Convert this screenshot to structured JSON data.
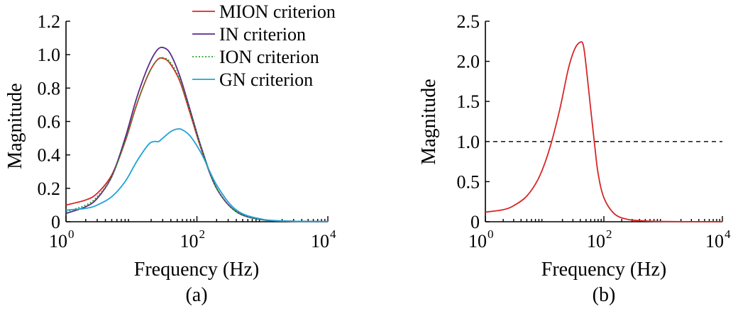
{
  "chart_data": [
    {
      "type": "line",
      "panel_label": "(a)",
      "xlabel": "Frequency (Hz)",
      "ylabel": "Magnitude",
      "x_scale": "log",
      "xlim": [
        1,
        10000
      ],
      "ylim": [
        0,
        1.2
      ],
      "x_ticks": [
        {
          "base": "10",
          "exp": "0",
          "value": 1
        },
        {
          "base": "10",
          "exp": "2",
          "value": 100
        },
        {
          "base": "10",
          "exp": "4",
          "value": 10000
        }
      ],
      "y_ticks": [
        "0",
        "0.2",
        "0.4",
        "0.6",
        "0.8",
        "1.0",
        "1.2"
      ],
      "legend_position": "top-right",
      "series": [
        {
          "name": "MION criterion",
          "color": "#d62728",
          "dash": "solid",
          "x": [
            1,
            2,
            3,
            5,
            8,
            12,
            18,
            25,
            32,
            40,
            55,
            80,
            120,
            200,
            400,
            1000,
            3000,
            10000
          ],
          "y": [
            0.1,
            0.13,
            0.17,
            0.28,
            0.48,
            0.7,
            0.88,
            0.97,
            0.975,
            0.94,
            0.84,
            0.64,
            0.42,
            0.2,
            0.06,
            0.012,
            0.003,
            0.001
          ]
        },
        {
          "name": "IN criterion",
          "color": "#5b2a86",
          "dash": "solid",
          "x": [
            1,
            2,
            3,
            5,
            8,
            12,
            18,
            25,
            32,
            40,
            55,
            80,
            120,
            200,
            400,
            1000,
            3000,
            10000
          ],
          "y": [
            0.05,
            0.09,
            0.14,
            0.27,
            0.5,
            0.74,
            0.93,
            1.03,
            1.04,
            1.0,
            0.87,
            0.66,
            0.43,
            0.2,
            0.06,
            0.012,
            0.003,
            0.001
          ]
        },
        {
          "name": "ION criterion",
          "color": "#2ca02c",
          "dash": "dotted",
          "x": [
            1,
            2,
            3,
            5,
            8,
            12,
            18,
            25,
            32,
            40,
            55,
            80,
            120,
            200,
            400,
            1000,
            3000,
            10000
          ],
          "y": [
            0.06,
            0.1,
            0.15,
            0.27,
            0.48,
            0.7,
            0.88,
            0.97,
            0.98,
            0.95,
            0.85,
            0.65,
            0.43,
            0.2,
            0.06,
            0.012,
            0.003,
            0.001
          ]
        },
        {
          "name": "GN criterion",
          "color": "#1fa3d6",
          "dash": "solid",
          "x": [
            1,
            2,
            3,
            5,
            8,
            12,
            18,
            22,
            26,
            30,
            40,
            50,
            60,
            80,
            120,
            200,
            400,
            1000,
            3000,
            10000
          ],
          "y": [
            0.07,
            0.08,
            0.1,
            0.15,
            0.24,
            0.36,
            0.46,
            0.48,
            0.48,
            0.5,
            0.54,
            0.555,
            0.55,
            0.51,
            0.4,
            0.22,
            0.07,
            0.015,
            0.003,
            0.001
          ]
        }
      ]
    },
    {
      "type": "line",
      "panel_label": "(b)",
      "xlabel": "Frequency (Hz)",
      "ylabel": "Magnitude",
      "x_scale": "log",
      "xlim": [
        1,
        10000
      ],
      "ylim": [
        0,
        2.5
      ],
      "x_ticks": [
        {
          "base": "10",
          "exp": "0",
          "value": 1
        },
        {
          "base": "10",
          "exp": "2",
          "value": 100
        },
        {
          "base": "10",
          "exp": "4",
          "value": 10000
        }
      ],
      "y_ticks": [
        "0",
        "0.5",
        "1.0",
        "1.5",
        "2.0",
        "2.5"
      ],
      "reference_line": {
        "y": 1.0,
        "color": "#000000",
        "dash": "dashed"
      },
      "series": [
        {
          "color": "#d62728",
          "dash": "solid",
          "x": [
            1,
            2,
            3,
            5,
            8,
            12,
            18,
            25,
            32,
            40,
            45,
            50,
            60,
            70,
            80,
            100,
            150,
            250,
            500,
            1000,
            3000,
            10000
          ],
          "y": [
            0.12,
            0.15,
            0.2,
            0.32,
            0.55,
            0.9,
            1.4,
            1.9,
            2.15,
            2.24,
            2.2,
            1.95,
            1.4,
            0.95,
            0.6,
            0.3,
            0.1,
            0.03,
            0.01,
            0.003,
            0.001,
            0.0
          ]
        }
      ]
    }
  ]
}
